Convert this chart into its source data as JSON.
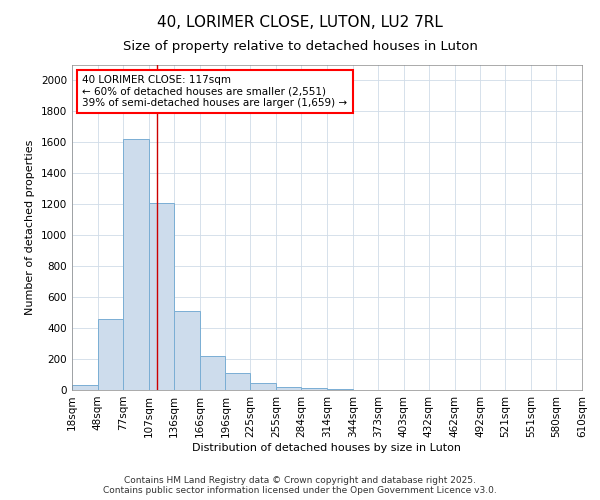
{
  "title": "40, LORIMER CLOSE, LUTON, LU2 7RL",
  "subtitle": "Size of property relative to detached houses in Luton",
  "xlabel": "Distribution of detached houses by size in Luton",
  "ylabel": "Number of detached properties",
  "bin_edges": [
    18,
    48,
    77,
    107,
    136,
    166,
    196,
    225,
    255,
    284,
    314,
    344,
    373,
    403,
    432,
    462,
    492,
    521,
    551,
    580,
    610
  ],
  "bar_heights": [
    30,
    460,
    1620,
    1210,
    510,
    220,
    110,
    45,
    20,
    10,
    5,
    2,
    0,
    0,
    0,
    0,
    0,
    0,
    0,
    0
  ],
  "bar_color": "#cddcec",
  "bar_edge_color": "#7aaed4",
  "vline_x": 117,
  "vline_color": "#cc0000",
  "ylim": [
    0,
    2100
  ],
  "yticks": [
    0,
    200,
    400,
    600,
    800,
    1000,
    1200,
    1400,
    1600,
    1800,
    2000
  ],
  "annotation_text": "40 LORIMER CLOSE: 117sqm\n← 60% of detached houses are smaller (2,551)\n39% of semi-detached houses are larger (1,659) →",
  "background_color": "#f5f7fa",
  "grid_color": "#d0dce8",
  "footer_text": "Contains HM Land Registry data © Crown copyright and database right 2025.\nContains public sector information licensed under the Open Government Licence v3.0.",
  "title_fontsize": 11,
  "subtitle_fontsize": 9.5,
  "label_fontsize": 8,
  "tick_fontsize": 7.5,
  "annotation_fontsize": 7.5,
  "footer_fontsize": 6.5
}
